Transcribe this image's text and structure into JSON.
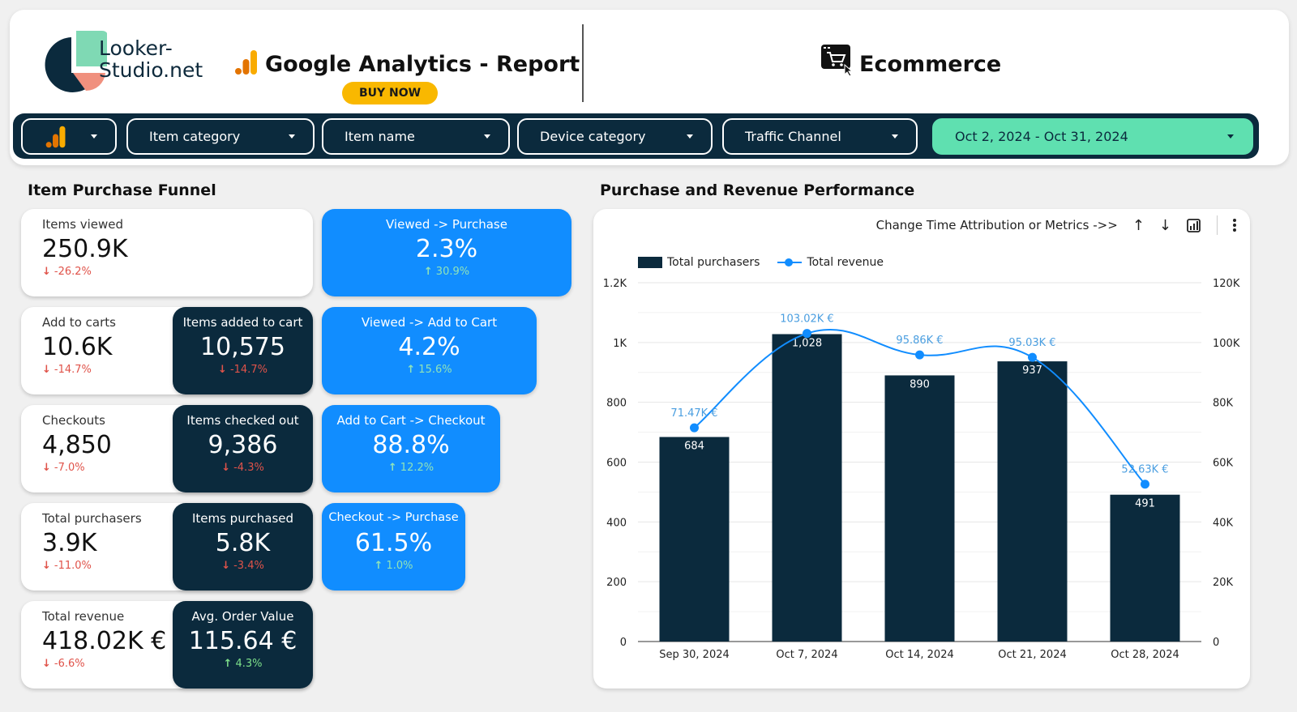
{
  "header": {
    "logo_text_line1": "Looker-",
    "logo_text_line2": "Studio.net",
    "title": "Google Analytics - Report",
    "buy_now": "BUY NOW",
    "section_title": "Ecommerce"
  },
  "filters": {
    "item_category": "Item category",
    "item_name": "Item name",
    "device_category": "Device category",
    "traffic_channel": "Traffic Channel",
    "date_range": "Oct 2, 2024 - Oct 31, 2024"
  },
  "funnel": {
    "title": "Item Purchase Funnel",
    "items_viewed": {
      "label": "Items viewed",
      "value": "250.9K",
      "delta": "-26.2%"
    },
    "viewed_purchase": {
      "label": "Viewed -> Purchase",
      "value": "2.3%",
      "delta": "30.9%"
    },
    "add_to_carts": {
      "label": "Add to carts",
      "value": "10.6K",
      "delta": "-14.7%"
    },
    "items_added": {
      "label": "Items added to cart",
      "value": "10,575",
      "delta": "-14.7%"
    },
    "viewed_cart": {
      "label": "Viewed -> Add to Cart",
      "value": "4.2%",
      "delta": "15.6%"
    },
    "checkouts": {
      "label": "Checkouts",
      "value": "4,850",
      "delta": "-7.0%"
    },
    "items_checked": {
      "label": "Items checked out",
      "value": "9,386",
      "delta": "-4.3%"
    },
    "cart_checkout": {
      "label": "Add to Cart -> Checkout",
      "value": "88.8%",
      "delta": "12.2%"
    },
    "total_purchasers": {
      "label": "Total purchasers",
      "value": "3.9K",
      "delta": "-11.0%"
    },
    "items_purchased": {
      "label": "Items purchased",
      "value": "5.8K",
      "delta": "-3.4%"
    },
    "checkout_purchase": {
      "label": "Checkout -> Purchase",
      "value": "61.5%",
      "delta": "1.0%"
    },
    "total_revenue": {
      "label": "Total revenue",
      "value": "418.02K €",
      "delta": "-6.6%"
    },
    "aov": {
      "label": "Avg. Order Value",
      "value": "115.64 €",
      "delta": "4.3%"
    }
  },
  "performance": {
    "title": "Purchase and Revenue Performance",
    "toolbar_text": "Change Time Attribution or Metrics ->>"
  },
  "colors": {
    "navy": "#0b2a3d",
    "blue": "#118dff",
    "mint": "#5fe0b0",
    "gold": "#f9b800"
  },
  "chart_data": {
    "type": "bar",
    "categories": [
      "Sep 30, 2024",
      "Oct 7, 2024",
      "Oct 14, 2024",
      "Oct 21, 2024",
      "Oct 28, 2024"
    ],
    "series": [
      {
        "name": "Total purchasers",
        "type": "bar",
        "axis": "left",
        "values": [
          684,
          1028,
          890,
          937,
          491
        ],
        "labels": [
          "684",
          "1,028",
          "890",
          "937",
          "491"
        ]
      },
      {
        "name": "Total revenue",
        "type": "line",
        "axis": "right",
        "values": [
          71470,
          103020,
          95860,
          95030,
          52630
        ],
        "labels": [
          "71.47K €",
          "103.02K €",
          "95.86K €",
          "95.03K €",
          "52.63K €"
        ]
      }
    ],
    "y_left": {
      "ylim": [
        0,
        1200
      ],
      "ticks": [
        0,
        200,
        400,
        600,
        800,
        1000,
        1200
      ],
      "tick_labels": [
        "0",
        "200",
        "400",
        "600",
        "800",
        "1K",
        "1.2K"
      ]
    },
    "y_right": {
      "ylim": [
        0,
        120000
      ],
      "ticks": [
        0,
        20000,
        40000,
        60000,
        80000,
        100000,
        120000
      ],
      "tick_labels": [
        "0",
        "20K",
        "40K",
        "60K",
        "80K",
        "100K",
        "120K"
      ]
    },
    "legend": "top-left",
    "grid": true
  }
}
